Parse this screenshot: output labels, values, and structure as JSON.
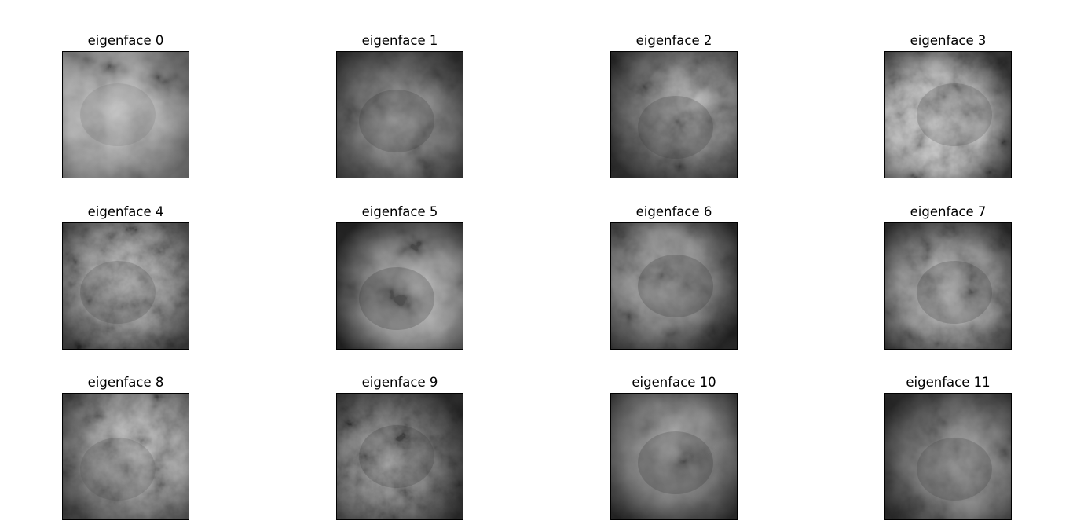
{
  "figure": {
    "panels": [
      {
        "title": "eigenface 0",
        "shade": "#bdbdbd",
        "dark": "#6e6e6e",
        "light": "#e6e6e6"
      },
      {
        "title": "eigenface 1",
        "shade": "#7a7a7a",
        "dark": "#2e2e2e",
        "light": "#c4c4c4"
      },
      {
        "title": "eigenface 2",
        "shade": "#858585",
        "dark": "#303030",
        "light": "#d2d2d2"
      },
      {
        "title": "eigenface 3",
        "shade": "#c2c2c2",
        "dark": "#3a3a3a",
        "light": "#eeeeee"
      },
      {
        "title": "eigenface 4",
        "shade": "#999999",
        "dark": "#3c3c3c",
        "light": "#dcdcdc"
      },
      {
        "title": "eigenface 5",
        "shade": "#9c9c9c",
        "dark": "#262626",
        "light": "#e2e2e2"
      },
      {
        "title": "eigenface 6",
        "shade": "#8e8e8e",
        "dark": "#2a2a2a",
        "light": "#cfcfcf"
      },
      {
        "title": "eigenface 7",
        "shade": "#9a9a9a",
        "dark": "#2c2c2c",
        "light": "#dadada"
      },
      {
        "title": "eigenface 8",
        "shade": "#a4a4a4",
        "dark": "#4a4a4a",
        "light": "#d8d8d8"
      },
      {
        "title": "eigenface 9",
        "shade": "#7e7e7e",
        "dark": "#2c2c2c",
        "light": "#cacaca"
      },
      {
        "title": "eigenface 10",
        "shade": "#858585",
        "dark": "#2a2a2a",
        "light": "#d0d0d0"
      },
      {
        "title": "eigenface 11",
        "shade": "#808080",
        "dark": "#303030",
        "light": "#c8c8c8"
      }
    ]
  }
}
